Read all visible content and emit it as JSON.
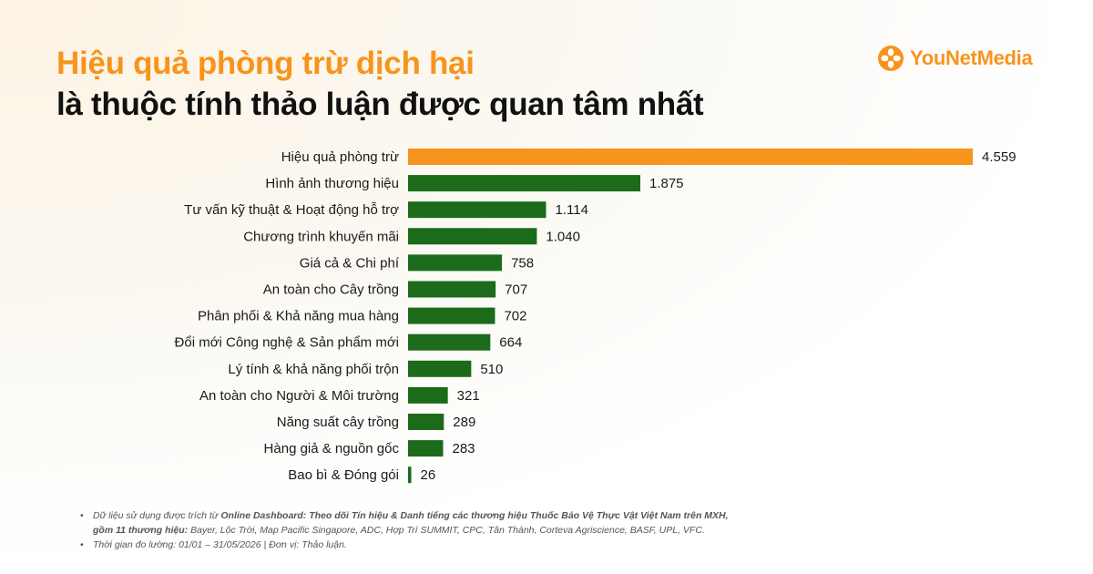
{
  "header": {
    "title_line1": "Hiệu quả phòng trừ dịch hại",
    "title_line2": "là thuộc tính thảo luận được quan tâm nhất"
  },
  "logo": {
    "text": "YouNetMedia",
    "icon": "younet-flower-icon",
    "color": "#f7941d"
  },
  "colors": {
    "highlight": "#f7941d",
    "bar": "#1b6b1b",
    "title_accent": "#f7941d"
  },
  "chart_data": {
    "type": "bar",
    "orientation": "horizontal",
    "categories": [
      "Hiệu quả phòng trừ",
      "Hình ảnh thương hiệu",
      "Tư vấn kỹ thuật & Hoạt động hỗ trợ",
      "Chương trình khuyến mãi",
      "Giá cả & Chi phí",
      "An toàn cho Cây trồng",
      "Phân phối & Khả năng mua hàng",
      "Đổi mới Công nghệ & Sản phẩm mới",
      "Lý tính & khả năng phối trộn",
      "An toàn cho Người & Môi trường",
      "Năng suất cây trồng",
      "Hàng giả & nguồn gốc",
      "Bao bì & Đóng gói"
    ],
    "values": [
      4559,
      1875,
      1114,
      1040,
      758,
      707,
      702,
      664,
      510,
      321,
      289,
      283,
      26
    ],
    "value_labels": [
      "4.559",
      "1.875",
      "1.114",
      "1.040",
      "758",
      "707",
      "702",
      "664",
      "510",
      "321",
      "289",
      "283",
      "26"
    ],
    "highlight_index": 0,
    "xlim": [
      0,
      4559
    ],
    "grid": false,
    "legend": "none"
  },
  "footnotes": {
    "line1_prefix": "Dữ liệu sử dụng được trích từ ",
    "line1_bold": "Online Dashboard: Theo dõi Tín hiệu & Danh tiếng các thương hiệu Thuốc Bảo Vệ Thực Vật Việt Nam trên MXH,",
    "line2_bold": "gồm 11 thương hiệu:",
    "line2_rest": " Bayer, Lộc Trời, Map Pacific Singapore, ADC, Hợp Trí SUMMIT, CPC, Tân Thành, Corteva Agriscience, BASF, UPL, VFC.",
    "line3": "Thời gian đo lường: 01/01 – 31/05/2026 | Đơn vị: Thảo luận."
  }
}
